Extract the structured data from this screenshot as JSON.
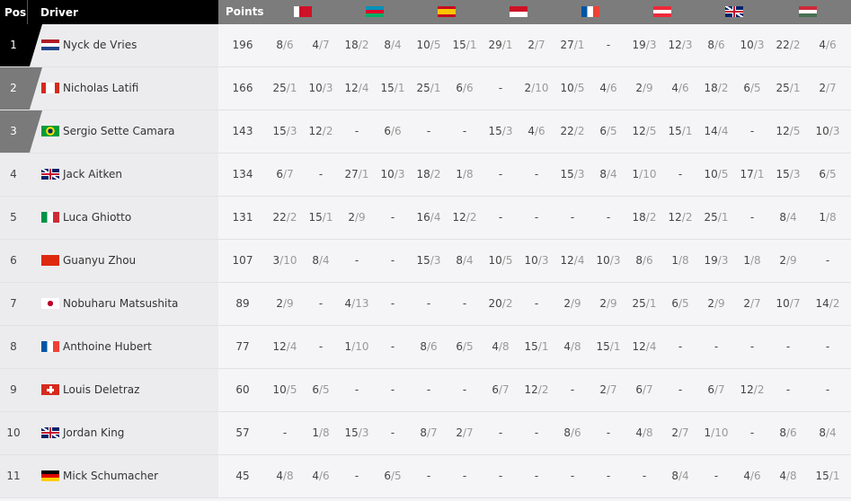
{
  "header": {
    "pos": "Pos",
    "driver": "Driver",
    "points": "Points",
    "flags": [
      "bahrain",
      "azerbaijan",
      "spain",
      "monaco",
      "france",
      "austria",
      "great-britain",
      "hungary"
    ]
  },
  "rows": [
    {
      "pos": "1",
      "flag": "netherlands",
      "driver": "Nyck de Vries",
      "points": "196",
      "results": [
        "8/6",
        "4/7",
        "18/2",
        "8/4",
        "10/5",
        "15/1",
        "29/1",
        "2/7",
        "27/1",
        "-",
        "19/3",
        "12/3",
        "8/6",
        "10/3",
        "22/2",
        "4/6"
      ]
    },
    {
      "pos": "2",
      "flag": "canada",
      "driver": "Nicholas Latifi",
      "points": "166",
      "results": [
        "25/1",
        "10/3",
        "12/4",
        "15/1",
        "25/1",
        "6/6",
        "-",
        "2/10",
        "10/5",
        "4/6",
        "2/9",
        "4/6",
        "18/2",
        "6/5",
        "25/1",
        "2/7"
      ]
    },
    {
      "pos": "3",
      "flag": "brazil",
      "driver": "Sergio Sette Camara",
      "points": "143",
      "results": [
        "15/3",
        "12/2",
        "-",
        "6/6",
        "-",
        "-",
        "15/3",
        "4/6",
        "22/2",
        "6/5",
        "12/5",
        "15/1",
        "14/4",
        "-",
        "12/5",
        "10/3"
      ]
    },
    {
      "pos": "4",
      "flag": "great-britain",
      "driver": "Jack Aitken",
      "points": "134",
      "results": [
        "6/7",
        "-",
        "27/1",
        "10/3",
        "18/2",
        "1/8",
        "-",
        "-",
        "15/3",
        "8/4",
        "1/10",
        "-",
        "10/5",
        "17/1",
        "15/3",
        "6/5"
      ]
    },
    {
      "pos": "5",
      "flag": "italy",
      "driver": "Luca Ghiotto",
      "points": "131",
      "results": [
        "22/2",
        "15/1",
        "2/9",
        "-",
        "16/4",
        "12/2",
        "-",
        "-",
        "-",
        "-",
        "18/2",
        "12/2",
        "25/1",
        "-",
        "8/4",
        "1/8"
      ]
    },
    {
      "pos": "6",
      "flag": "china",
      "driver": "Guanyu Zhou",
      "points": "107",
      "results": [
        "3/10",
        "8/4",
        "-",
        "-",
        "15/3",
        "8/4",
        "10/5",
        "10/3",
        "12/4",
        "10/3",
        "8/6",
        "1/8",
        "19/3",
        "1/8",
        "2/9",
        "-"
      ]
    },
    {
      "pos": "7",
      "flag": "japan",
      "driver": "Nobuharu Matsushita",
      "points": "89",
      "results": [
        "2/9",
        "-",
        "4/13",
        "-",
        "-",
        "-",
        "20/2",
        "-",
        "2/9",
        "2/9",
        "25/1",
        "6/5",
        "2/9",
        "2/7",
        "10/7",
        "14/2"
      ]
    },
    {
      "pos": "8",
      "flag": "france",
      "driver": "Anthoine Hubert",
      "points": "77",
      "results": [
        "12/4",
        "-",
        "1/10",
        "-",
        "8/6",
        "6/5",
        "4/8",
        "15/1",
        "4/8",
        "15/1",
        "12/4",
        "-",
        "-",
        "-",
        "-",
        "-"
      ]
    },
    {
      "pos": "9",
      "flag": "switzerland",
      "driver": "Louis Deletraz",
      "points": "60",
      "results": [
        "10/5",
        "6/5",
        "-",
        "-",
        "-",
        "-",
        "6/7",
        "12/2",
        "-",
        "2/7",
        "6/7",
        "-",
        "6/7",
        "12/2",
        "-",
        "-"
      ]
    },
    {
      "pos": "10",
      "flag": "great-britain",
      "driver": "Jordan King",
      "points": "57",
      "results": [
        "-",
        "1/8",
        "15/3",
        "-",
        "8/7",
        "2/7",
        "-",
        "-",
        "8/6",
        "-",
        "4/8",
        "2/7",
        "1/10",
        "-",
        "8/6",
        "8/4"
      ]
    },
    {
      "pos": "11",
      "flag": "germany",
      "driver": "Mick Schumacher",
      "points": "45",
      "results": [
        "4/8",
        "4/6",
        "-",
        "6/5",
        "-",
        "-",
        "-",
        "-",
        "-",
        "-",
        "-",
        "8/4",
        "-",
        "4/6",
        "4/8",
        "15/1"
      ]
    }
  ],
  "colors": {
    "header_dark": "#000000",
    "header_gray": "#7c7c7c",
    "pos1": "#000000",
    "pos23": "#7a7a7a"
  }
}
